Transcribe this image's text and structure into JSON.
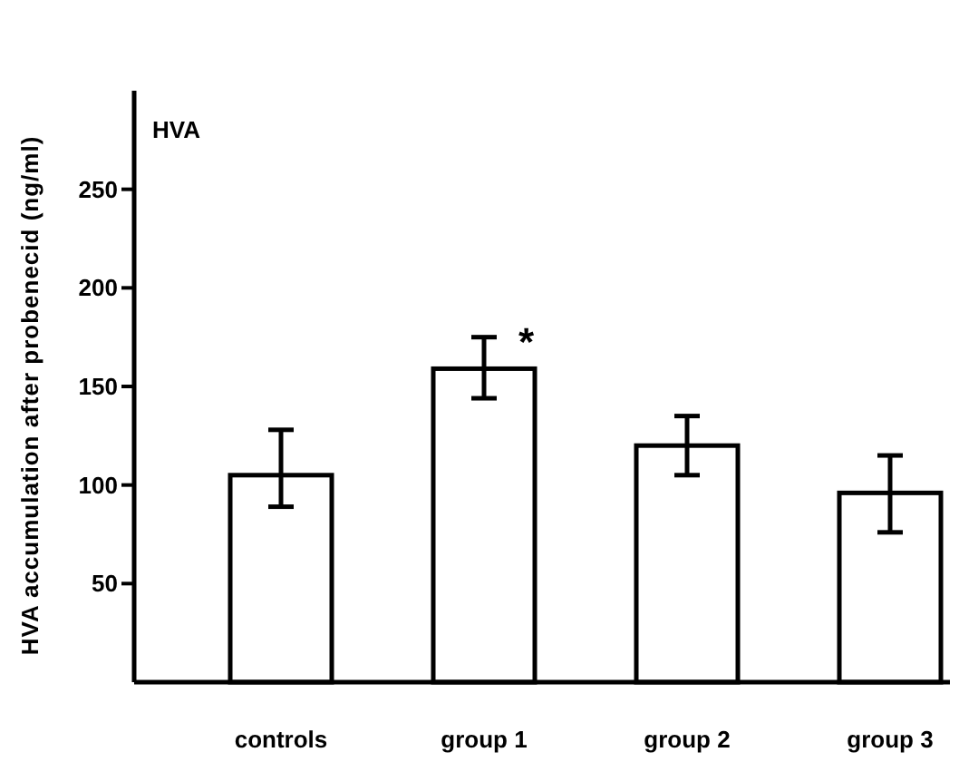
{
  "chart_data": {
    "type": "bar",
    "ylabel": "HVA accumulation after probenecid (ng/ml)",
    "categories": [
      "controls",
      "group 1",
      "group 2",
      "group 3"
    ],
    "values": [
      105,
      159,
      120,
      96
    ],
    "errors": [
      [
        89,
        128
      ],
      [
        144,
        175
      ],
      [
        105,
        135
      ],
      [
        76,
        115
      ]
    ],
    "color": "#ffffff",
    "ylim": [
      0,
      300
    ],
    "yticks": [
      50,
      100,
      150,
      200,
      250
    ],
    "grid": false,
    "annotations": [
      "HVA",
      {
        "text": "*",
        "x": "group 1",
        "y": 175
      }
    ]
  }
}
